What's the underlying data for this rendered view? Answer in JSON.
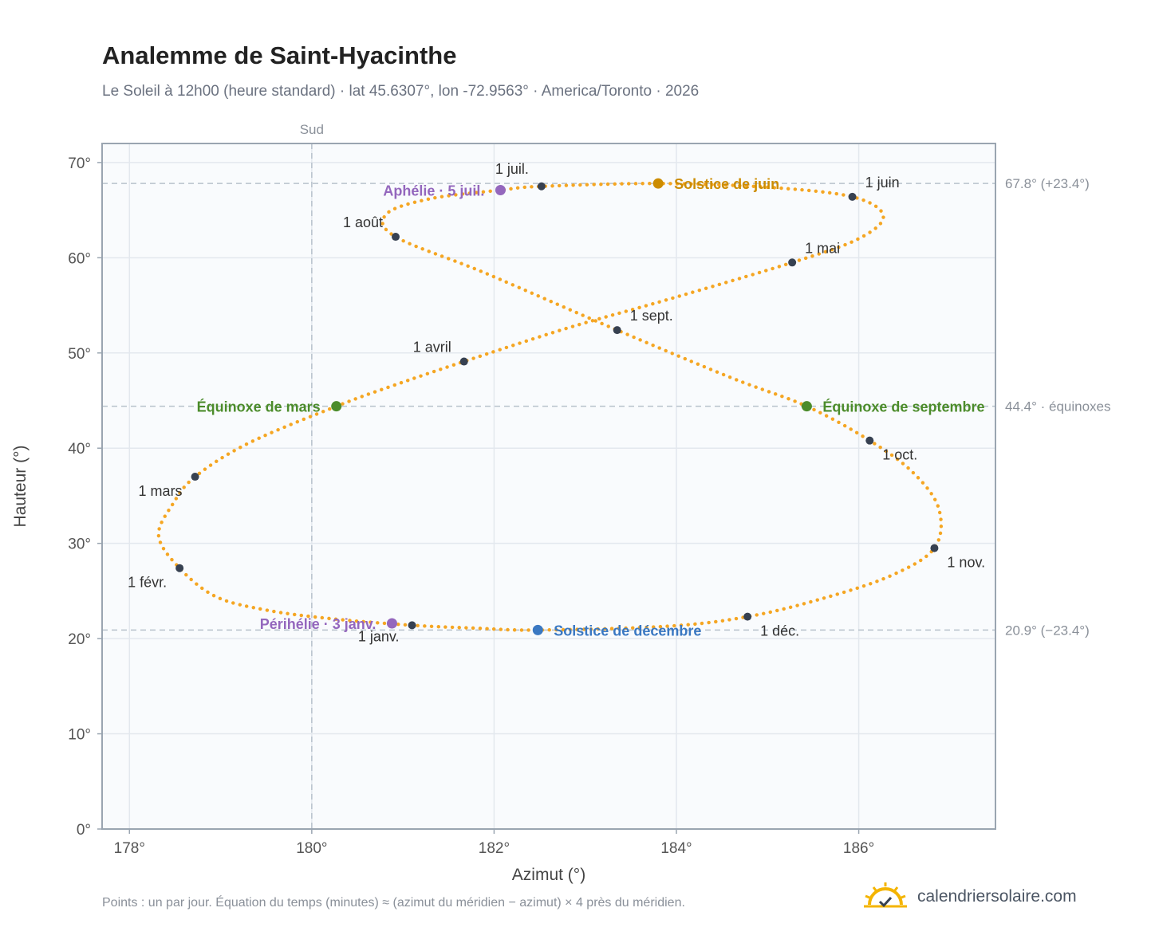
{
  "title": "Analemme de Saint-Hyacinthe",
  "subtitle": "Le Soleil à 12h00 (heure standard) · lat 45.6307°, lon -72.9563° · America/Toronto · 2026",
  "footnote": "Points : un par jour. Équation du temps (minutes) ≈ (azimut du méridien − azimut) × 4 près du méridien.",
  "brand": {
    "name": "calendriersolaire.com",
    "logo_icon": "sun-check-icon",
    "logo_color": "#f4b400"
  },
  "chart_data": {
    "type": "scatter",
    "xlabel": "Azimut (°)",
    "ylabel": "Hauteur (°)",
    "xlim": [
      177.7,
      187.5
    ],
    "ylim": [
      0,
      72
    ],
    "xticks": [
      178,
      180,
      182,
      184,
      186
    ],
    "xtick_labels": [
      "178°",
      "180°",
      "182°",
      "184°",
      "186°"
    ],
    "yticks": [
      0,
      10,
      20,
      30,
      40,
      50,
      60,
      70
    ],
    "ytick_labels": [
      "0°",
      "10°",
      "20°",
      "30°",
      "40°",
      "50°",
      "60°",
      "70°"
    ],
    "grid": true,
    "colors": {
      "curve": "#f5a623",
      "month": "#374151",
      "perihelion": "#9467bd",
      "june_solstice": "#cc8c00",
      "december_solstice": "#3a78c2",
      "equinox": "#4c8c2b",
      "reference": "#b8c2cc"
    },
    "reference_lines": [
      {
        "orientation": "vertical",
        "x": 180,
        "label": "Sud"
      },
      {
        "orientation": "horizontal",
        "y": 67.8,
        "label": "67.8° (+23.4°)"
      },
      {
        "orientation": "horizontal",
        "y": 44.4,
        "label": "44.4° · équinoxes"
      },
      {
        "orientation": "horizontal",
        "y": 20.9,
        "label": "20.9° (−23.4°)"
      }
    ],
    "month_markers": [
      {
        "label": "1 janv.",
        "x": 181.1,
        "y": 21.4
      },
      {
        "label": "1 févr.",
        "x": 178.55,
        "y": 27.4
      },
      {
        "label": "1 mars",
        "x": 178.72,
        "y": 37.0
      },
      {
        "label": "1 avril",
        "x": 181.67,
        "y": 49.1
      },
      {
        "label": "1 mai",
        "x": 185.27,
        "y": 59.5
      },
      {
        "label": "1 juin",
        "x": 185.93,
        "y": 66.4
      },
      {
        "label": "1 juil.",
        "x": 182.52,
        "y": 67.5
      },
      {
        "label": "1 août",
        "x": 180.92,
        "y": 62.2
      },
      {
        "label": "1 sept.",
        "x": 183.35,
        "y": 52.4
      },
      {
        "label": "1 oct.",
        "x": 186.12,
        "y": 40.8
      },
      {
        "label": "1 nov.",
        "x": 186.83,
        "y": 29.5
      },
      {
        "label": "1 déc.",
        "x": 184.78,
        "y": 22.3
      }
    ],
    "events": [
      {
        "label": "Périhélie · 3 janv.",
        "x": 180.88,
        "y": 21.6,
        "kind": "perihelion"
      },
      {
        "label": "Équinoxe de mars",
        "x": 180.27,
        "y": 44.4,
        "kind": "equinox"
      },
      {
        "label": "Aphélie · 5 juil.",
        "x": 182.07,
        "y": 67.1,
        "kind": "perihelion"
      },
      {
        "label": "Solstice de juin",
        "x": 183.8,
        "y": 67.8,
        "kind": "june_solstice"
      },
      {
        "label": "Équinoxe de septembre",
        "x": 185.43,
        "y": 44.4,
        "kind": "equinox"
      },
      {
        "label": "Solstice de décembre",
        "x": 182.48,
        "y": 20.9,
        "kind": "december_solstice"
      }
    ],
    "curve_anchors": [
      [
        181.1,
        21.4
      ],
      [
        180.2,
        22.1
      ],
      [
        179.5,
        23.0
      ],
      [
        178.95,
        24.4
      ],
      [
        178.55,
        27.4
      ],
      [
        178.32,
        30.8
      ],
      [
        178.48,
        34.2
      ],
      [
        178.72,
        37.0
      ],
      [
        179.3,
        40.5
      ],
      [
        180.27,
        44.4
      ],
      [
        180.9,
        46.6
      ],
      [
        181.67,
        49.1
      ],
      [
        182.8,
        52.6
      ],
      [
        183.9,
        55.6
      ],
      [
        185.27,
        59.5
      ],
      [
        186.0,
        62.0
      ],
      [
        186.27,
        64.4
      ],
      [
        185.93,
        66.4
      ],
      [
        185.0,
        67.4
      ],
      [
        183.8,
        67.8
      ],
      [
        182.52,
        67.5
      ],
      [
        182.07,
        67.1
      ],
      [
        181.3,
        66.2
      ],
      [
        180.82,
        64.6
      ],
      [
        180.92,
        62.2
      ],
      [
        181.9,
        58.4
      ],
      [
        183.35,
        52.4
      ],
      [
        184.6,
        47.4
      ],
      [
        185.43,
        44.4
      ],
      [
        186.12,
        40.8
      ],
      [
        186.6,
        37.4
      ],
      [
        186.88,
        33.6
      ],
      [
        186.83,
        29.5
      ],
      [
        186.35,
        26.6
      ],
      [
        185.6,
        24.2
      ],
      [
        184.78,
        22.3
      ],
      [
        183.9,
        21.3
      ],
      [
        182.48,
        20.9
      ],
      [
        181.8,
        21.1
      ]
    ]
  }
}
